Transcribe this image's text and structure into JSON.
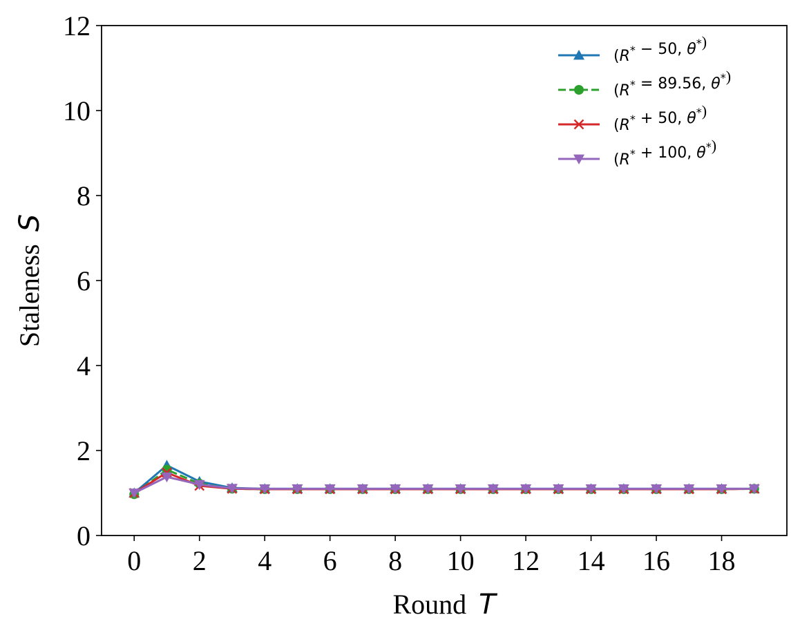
{
  "chart_data": {
    "type": "line",
    "title": "",
    "xlabel": {
      "text": "Round",
      "var": "T"
    },
    "ylabel": {
      "text": "Staleness",
      "var": "S"
    },
    "xlim": [
      -1,
      20
    ],
    "ylim": [
      0,
      12
    ],
    "xticks": [
      0,
      2,
      4,
      6,
      8,
      10,
      12,
      14,
      16,
      18
    ],
    "yticks": [
      0,
      2,
      4,
      6,
      8,
      10,
      12
    ],
    "grid": false,
    "legend_position": "top-right",
    "x": [
      0,
      1,
      2,
      3,
      4,
      5,
      6,
      7,
      8,
      9,
      10,
      11,
      12,
      13,
      14,
      15,
      16,
      17,
      18,
      19
    ],
    "series": [
      {
        "name": "(R* − 50, θ*)",
        "legend": {
          "open": "(",
          "var": "R",
          "sup": "*",
          "rest": " − 50, ",
          "var2": "θ",
          "sup2": "*",
          "close": ")"
        },
        "color": "#1f77b4",
        "marker": "triangle-up",
        "dash": "solid",
        "values": [
          1.0,
          1.65,
          1.27,
          1.12,
          1.1,
          1.1,
          1.1,
          1.1,
          1.1,
          1.1,
          1.1,
          1.1,
          1.1,
          1.1,
          1.1,
          1.1,
          1.1,
          1.1,
          1.1,
          1.1
        ]
      },
      {
        "name": "(R* = 89.56, θ*)",
        "legend": {
          "open": "(",
          "var": "R",
          "sup": "*",
          "rest": " = 89.56, ",
          "var2": "θ",
          "sup2": "*",
          "close": ")"
        },
        "color": "#2ca02c",
        "marker": "circle",
        "dash": "dashed",
        "values": [
          0.97,
          1.55,
          1.22,
          1.1,
          1.09,
          1.09,
          1.09,
          1.09,
          1.09,
          1.09,
          1.09,
          1.09,
          1.09,
          1.09,
          1.09,
          1.09,
          1.09,
          1.09,
          1.09,
          1.1
        ]
      },
      {
        "name": "(R* + 50, θ*)",
        "legend": {
          "open": "(",
          "var": "R",
          "sup": "*",
          "rest": " + 50, ",
          "var2": "θ",
          "sup2": "*",
          "close": ")"
        },
        "color": "#d62728",
        "marker": "x",
        "dash": "solid",
        "values": [
          1.0,
          1.48,
          1.17,
          1.1,
          1.09,
          1.09,
          1.09,
          1.09,
          1.09,
          1.09,
          1.09,
          1.09,
          1.09,
          1.09,
          1.09,
          1.09,
          1.09,
          1.09,
          1.09,
          1.1
        ]
      },
      {
        "name": "(R* + 100, θ*)",
        "legend": {
          "open": "(",
          "var": "R",
          "sup": "*",
          "rest": " + 100, ",
          "var2": "θ",
          "sup2": "*",
          "close": ")"
        },
        "color": "#9467bd",
        "marker": "triangle-down",
        "dash": "solid",
        "values": [
          1.0,
          1.38,
          1.2,
          1.11,
          1.1,
          1.1,
          1.1,
          1.1,
          1.1,
          1.1,
          1.1,
          1.1,
          1.1,
          1.1,
          1.1,
          1.1,
          1.1,
          1.1,
          1.1,
          1.1
        ]
      }
    ]
  }
}
